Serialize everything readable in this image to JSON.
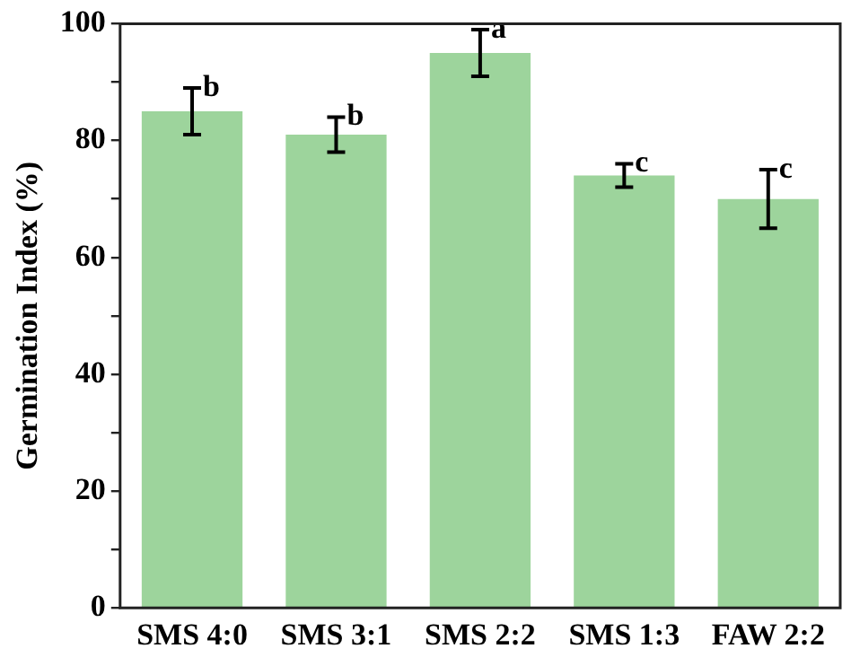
{
  "chart_data": {
    "type": "bar",
    "ylabel": "Germination Index (%)",
    "categories": [
      "SMS 4:0",
      "SMS 3:1",
      "SMS 2:2",
      "SMS 1:3",
      "FAW 2:2"
    ],
    "values": [
      85,
      81,
      95,
      74,
      70
    ],
    "errors": [
      4,
      3,
      4,
      2,
      5
    ],
    "color": "#9dd49c",
    "ylim": [
      0,
      100
    ],
    "yticks": [
      0,
      {
        "value": 10,
        "label": null
      },
      20,
      {
        "value": 30,
        "label": null
      },
      40,
      {
        "value": 50,
        "label": null
      },
      60,
      {
        "value": 70,
        "label": null
      },
      80,
      {
        "value": 90,
        "label": null
      },
      100
    ],
    "grid": false,
    "legend": false,
    "annotations": [
      {
        "text": "b",
        "x": "SMS 4:0",
        "y": 89
      },
      {
        "text": "b",
        "x": "SMS 3:1",
        "y": 84
      },
      {
        "text": "a",
        "x": "SMS 2:2",
        "y": 99
      },
      {
        "text": "c",
        "x": "SMS 1:3",
        "y": 76
      },
      {
        "text": "c",
        "x": "FAW 2:2",
        "y": 75
      }
    ]
  }
}
